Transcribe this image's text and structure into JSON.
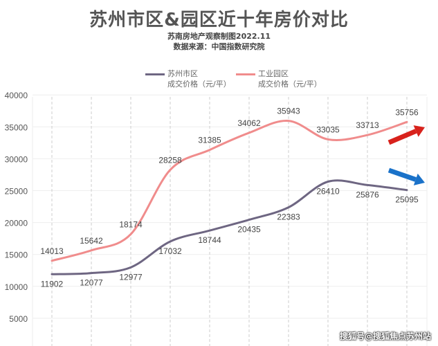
{
  "chart_data": {
    "type": "line",
    "title": "苏州市区&园区近十年房价对比",
    "subtitle": [
      "苏南房地产观察制图2022.11",
      "数据来源：中国指数研究院"
    ],
    "xlabel": "",
    "ylabel": "",
    "ylim": [
      0,
      40000
    ],
    "yticks": [
      5000,
      10000,
      15000,
      20000,
      25000,
      30000,
      35000,
      40000
    ],
    "grid": true,
    "legend": "top",
    "series": [
      {
        "name": "苏州市区",
        "unit": "成交价格（元/平）",
        "color": "#6e6682",
        "values": [
          11902,
          12077,
          12977,
          17032,
          18744,
          20435,
          22383,
          26410,
          25876,
          25095
        ],
        "trend_arrow": "down",
        "arrow_color": "#1a72c9"
      },
      {
        "name": "工业园区",
        "unit": "成交价格（元/平）",
        "color": "#f08c8c",
        "values": [
          14013,
          15642,
          18174,
          28258,
          31385,
          34062,
          35943,
          33035,
          33713,
          35756
        ],
        "trend_arrow": "up",
        "arrow_color": "#d8221c"
      }
    ]
  },
  "watermark": "搜狐号@搜狐焦点苏州站"
}
